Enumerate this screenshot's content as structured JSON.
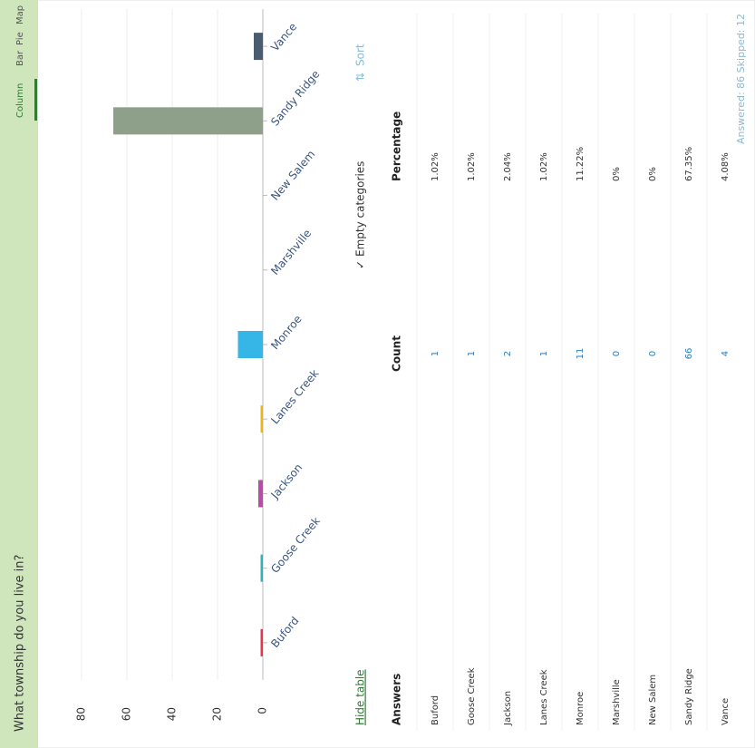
{
  "header": {
    "title": "What township do you live in?",
    "tabs": [
      "Column",
      "Bar",
      "Pie",
      "Map"
    ]
  },
  "chart_data": {
    "type": "bar",
    "categories": [
      "Buford",
      "Goose Creek",
      "Jackson",
      "Lanes Creek",
      "Monroe",
      "Marshville",
      "New Salem",
      "Sandy Ridge",
      "Vance"
    ],
    "values": [
      1,
      1,
      2,
      1,
      11,
      0,
      0,
      66,
      4
    ],
    "colors": [
      "#e8344e",
      "#2cb3c0",
      "#b84ea3",
      "#f2b705",
      "#35b6e6",
      "#8bc34a",
      "#f58231",
      "#8fa08a",
      "#4a5d70"
    ],
    "ylim": [
      0,
      80
    ],
    "yticks": [
      0,
      20,
      40,
      60,
      80
    ],
    "grid": true
  },
  "controls": {
    "hide_table": "Hide table",
    "empty_categories": "Empty categories",
    "sort": "Sort"
  },
  "table": {
    "columns": [
      "Answers",
      "Count",
      "Percentage"
    ],
    "rows": [
      [
        "Buford",
        1,
        "1.02%"
      ],
      [
        "Goose Creek",
        1,
        "1.02%"
      ],
      [
        "Jackson",
        2,
        "2.04%"
      ],
      [
        "Lanes Creek",
        1,
        "1.02%"
      ],
      [
        "Monroe",
        11,
        "11.22%"
      ],
      [
        "Marshville",
        0,
        "0%"
      ],
      [
        "New Salem",
        0,
        "0%"
      ],
      [
        "Sandy Ridge",
        66,
        "67.35%"
      ],
      [
        "Vance",
        4,
        "4.08%"
      ]
    ]
  },
  "footer": {
    "summary": "Answered: 86  Skipped: 12"
  }
}
